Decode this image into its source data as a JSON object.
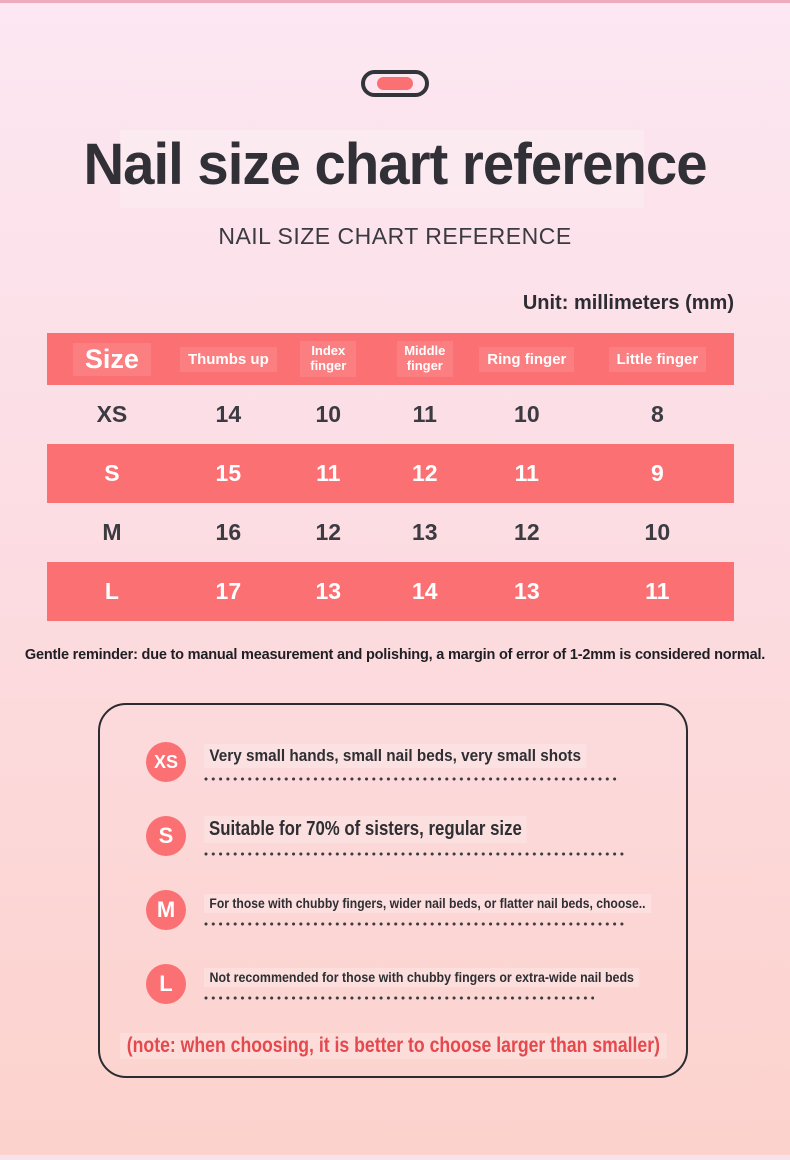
{
  "colors": {
    "accent_red": "#fb7073",
    "note_red": "#e5484d",
    "dark_text": "#303036",
    "bg_top": "#fce7f2",
    "bg_bottom": "#fcd2cc"
  },
  "icons": {
    "toggle_pill": "pill-toggle-icon"
  },
  "header": {
    "title": "Nail size chart reference",
    "subtitle": "NAIL SIZE CHART REFERENCE",
    "unit_label": "Unit: millimeters (mm)"
  },
  "table": {
    "columns": [
      "Size",
      "Thumbs up",
      "Index finger",
      "Middle finger",
      "Ring finger",
      "Little finger"
    ],
    "rows": [
      {
        "size": "XS",
        "values": [
          "14",
          "10",
          "11",
          "10",
          "8"
        ]
      },
      {
        "size": "S",
        "values": [
          "15",
          "11",
          "12",
          "11",
          "9"
        ]
      },
      {
        "size": "M",
        "values": [
          "16",
          "12",
          "13",
          "12",
          "10"
        ]
      },
      {
        "size": "L",
        "values": [
          "17",
          "13",
          "14",
          "13",
          "11"
        ]
      }
    ]
  },
  "reminder": "Gentle reminder: due to manual measurement and polishing, a margin of error of 1-2mm is considered normal.",
  "guide": {
    "items": [
      {
        "badge": "XS",
        "text": "Very small hands, small nail beds, very small shots"
      },
      {
        "badge": "S",
        "text": "Suitable for 70% of sisters, regular size"
      },
      {
        "badge": "M",
        "text": "For those with chubby fingers, wider nail beds, or flatter nail beds, choose.."
      },
      {
        "badge": "L",
        "text": "Not recommended for those with chubby fingers or extra-wide nail beds"
      }
    ],
    "note": "(note: when choosing, it is better to choose larger than smaller)"
  },
  "chart_data": {
    "type": "table",
    "title": "Nail size chart reference",
    "unit": "millimeters (mm)",
    "columns": [
      "Size",
      "Thumbs up",
      "Index finger",
      "Middle finger",
      "Ring finger",
      "Little finger"
    ],
    "rows": [
      [
        "XS",
        14,
        10,
        11,
        10,
        8
      ],
      [
        "S",
        15,
        11,
        12,
        11,
        9
      ],
      [
        "M",
        16,
        12,
        13,
        12,
        10
      ],
      [
        "L",
        17,
        13,
        14,
        13,
        11
      ]
    ],
    "highlighted_rows": [
      "S",
      "L"
    ],
    "note": "margin of error of 1-2mm is considered normal"
  }
}
